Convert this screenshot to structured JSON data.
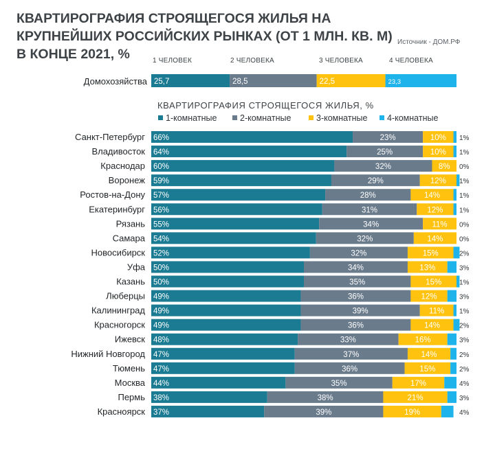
{
  "title": "КВАРТИРОГРАФИЯ СТРОЯЩЕГОСЯ ЖИЛЬЯ НА КРУПНЕЙШИХ РОССИЙСКИХ РЫНКАХ (ОТ 1 МЛН. КВ. М) В КОНЦЕ 2021, %",
  "source": "Источник - ДОМ.РФ",
  "colors": [
    "#1a7b93",
    "#6a7b8c",
    "#ffc20e",
    "#1eb3ea"
  ],
  "chart_data": [
    {
      "type": "bar",
      "orientation": "horizontal",
      "stacked": true,
      "categories": [
        "Домохозяйства"
      ],
      "series": [
        {
          "name": "1 ЧЕЛОВЕК",
          "values": [
            25.7
          ],
          "labels": [
            "25,7"
          ]
        },
        {
          "name": "2 ЧЕЛОВЕКА",
          "values": [
            28.5
          ],
          "labels": [
            "28,5"
          ]
        },
        {
          "name": "3 ЧЕЛОВЕКА",
          "values": [
            22.5
          ],
          "labels": [
            "22,5"
          ]
        },
        {
          "name": "4 ЧЕЛОВЕКА",
          "values": [
            23.3
          ],
          "labels": [
            "23,3"
          ]
        }
      ],
      "xlim": [
        0,
        100
      ]
    },
    {
      "type": "bar",
      "orientation": "horizontal",
      "stacked": true,
      "title": "КВАРТИРОГРАФИЯ СТРОЯЩЕГОСЯ ЖИЛЬЯ, %",
      "legend_position": "top",
      "categories": [
        "Санкт-Петербург",
        "Владивосток",
        "Краснодар",
        "Воронеж",
        "Ростов-на-Дону",
        "Екатеринбург",
        "Рязань",
        "Самара",
        "Новосибирск",
        "Уфа",
        "Казань",
        "Люберцы",
        "Калининград",
        "Красногорск",
        "Ижевск",
        "Нижний Новгород",
        "Тюмень",
        "Москва",
        "Пермь",
        "Красноярск"
      ],
      "series": [
        {
          "name": "1-комнатные",
          "values": [
            66,
            64,
            60,
            59,
            57,
            56,
            55,
            54,
            52,
            50,
            50,
            49,
            49,
            49,
            48,
            47,
            47,
            44,
            38,
            37
          ]
        },
        {
          "name": "2-комнатные",
          "values": [
            23,
            25,
            32,
            29,
            28,
            31,
            34,
            32,
            32,
            34,
            35,
            36,
            39,
            36,
            33,
            37,
            36,
            35,
            38,
            39
          ]
        },
        {
          "name": "3-комнатные",
          "values": [
            10,
            10,
            8,
            12,
            14,
            12,
            11,
            14,
            15,
            13,
            15,
            12,
            11,
            14,
            16,
            14,
            15,
            17,
            21,
            19
          ]
        },
        {
          "name": "4-комнатные",
          "values": [
            1,
            1,
            0,
            1,
            1,
            1,
            0,
            0,
            2,
            3,
            1,
            3,
            1,
            2,
            3,
            2,
            2,
            4,
            3,
            4
          ]
        }
      ],
      "xlim": [
        0,
        100
      ]
    }
  ]
}
